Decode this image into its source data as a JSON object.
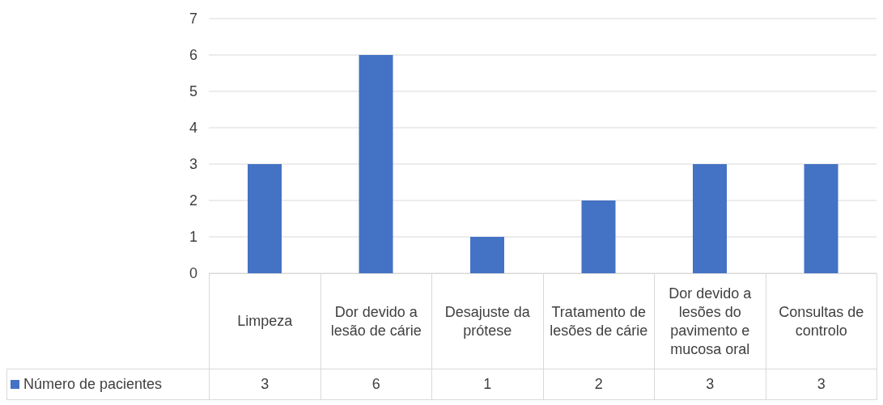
{
  "chart_data": {
    "type": "bar",
    "categories": [
      "Limpeza",
      "Dor devido a lesão de cárie",
      "Desajuste da prótese",
      "Tratamento de lesões de cárie",
      "Dor devido a lesões do pavimento e mucosa oral",
      "Consultas de controlo"
    ],
    "series": [
      {
        "name": "Número de pacientes",
        "color": "#4472c4",
        "values": [
          3,
          6,
          1,
          2,
          3,
          3
        ]
      }
    ],
    "ylim": [
      0,
      7
    ],
    "yticks": [
      0,
      1,
      2,
      3,
      4,
      5,
      6,
      7
    ],
    "grid": "y",
    "legend": "bottom",
    "data_labels": true
  }
}
